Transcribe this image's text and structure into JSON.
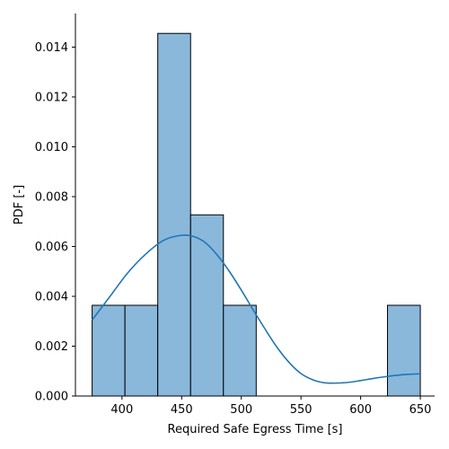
{
  "chart_data": {
    "type": "bar",
    "histogram": {
      "bin_edges": [
        375,
        402.5,
        430,
        457.5,
        485,
        512.5,
        540,
        567.5,
        595,
        622.5,
        650
      ],
      "densities": [
        0.00364,
        0.00364,
        0.01455,
        0.00727,
        0.00364,
        0,
        0,
        0,
        0,
        0.00364
      ],
      "fill_color": "#89b8db",
      "edge_color": "#000000"
    },
    "kde": {
      "color": "#1f77b4",
      "x": [
        375,
        390,
        405,
        420,
        435,
        450,
        460,
        470,
        480,
        490,
        500,
        510,
        520,
        530,
        540,
        550,
        560,
        570,
        580,
        590,
        600,
        610,
        620,
        630,
        640,
        650
      ],
      "y": [
        0.00305,
        0.004,
        0.00495,
        0.0057,
        0.00625,
        0.00645,
        0.0064,
        0.00615,
        0.00565,
        0.005,
        0.00425,
        0.00345,
        0.00268,
        0.00195,
        0.00135,
        0.0009,
        0.00065,
        0.00053,
        0.00052,
        0.00055,
        0.00062,
        0.0007,
        0.00077,
        0.00083,
        0.00087,
        0.00089
      ]
    },
    "xlabel": "Required Safe Egress Time [s]",
    "ylabel": "PDF [-]",
    "xlim": [
      361,
      662
    ],
    "ylim": [
      0,
      0.01535
    ],
    "x_ticks": [
      400,
      450,
      500,
      550,
      600,
      650
    ],
    "x_tick_labels": [
      "400",
      "450",
      "500",
      "550",
      "600",
      "650"
    ],
    "y_ticks": [
      0,
      0.002,
      0.004,
      0.006,
      0.008,
      0.01,
      0.012,
      0.014
    ],
    "y_tick_labels": [
      "0.000",
      "0.002",
      "0.004",
      "0.006",
      "0.008",
      "0.010",
      "0.012",
      "0.014"
    ],
    "grid": false,
    "legend": false
  }
}
